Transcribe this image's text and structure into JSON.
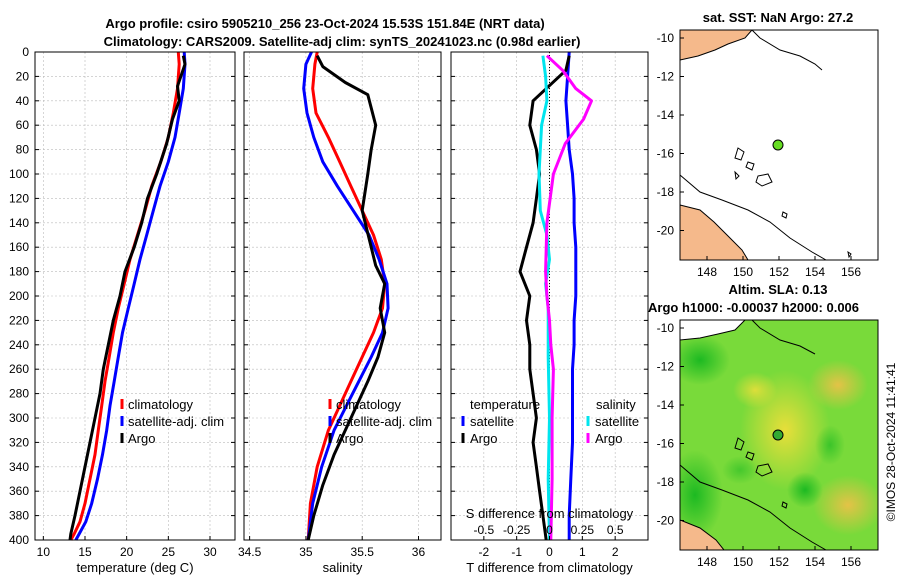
{
  "titles": {
    "line1": "Argo profile: csiro 5905210_256 23-Oct-2024 15.53S 151.84E (NRT data)",
    "line2": "Climatology: CARS2009. Satellite-adj clim: synTS_20241023.nc (0.98d earlier)",
    "map_sst": "sat. SST: NaN Argo: 27.2",
    "map_sla_line1": "Altim. SLA: 0.13",
    "map_sla_line2": "Argo h1000: -0.00037 h2000: 0.006",
    "copyright": "©IMOS 28-Oct-2024 11:41:41"
  },
  "colors": {
    "climatology": "#ff0000",
    "satellite": "#0000ff",
    "argo": "#000000",
    "sal_clim": "#ff00ff",
    "sal_sat": "#00e5ee",
    "land": "#f5b98b",
    "sla_base": "#39d839"
  },
  "chart_data": [
    {
      "type": "line",
      "xlabel": "temperature (deg C)",
      "xlim": [
        9,
        33
      ],
      "xticks": [
        10,
        15,
        20,
        25,
        30
      ],
      "ylim": [
        0,
        400
      ],
      "yticks": [
        0,
        20,
        40,
        60,
        80,
        100,
        120,
        140,
        160,
        180,
        200,
        220,
        240,
        260,
        280,
        300,
        320,
        340,
        360,
        380,
        400
      ],
      "grid": true,
      "legend": {
        "position": "middle-right",
        "entries": [
          "climatology",
          "satellite-adj. clim",
          "Argo"
        ]
      },
      "series": [
        {
          "name": "climatology",
          "color": "#ff0000",
          "x": [
            26.2,
            26.3,
            26.1,
            25.6,
            25.0,
            24.1,
            23.0,
            22.2,
            21.3,
            20.4,
            19.7,
            19.0,
            18.4,
            17.9,
            17.4,
            17.0,
            16.6,
            16.2,
            15.6,
            15.0,
            14.4,
            13.7,
            13.3
          ],
          "y": [
            0,
            10,
            30,
            50,
            70,
            90,
            110,
            130,
            150,
            170,
            190,
            210,
            230,
            250,
            270,
            290,
            310,
            330,
            350,
            370,
            385,
            395,
            400
          ]
        },
        {
          "name": "satellite-adj. clim",
          "color": "#0000ff",
          "x": [
            26.9,
            27.0,
            26.8,
            26.3,
            25.8,
            25.0,
            24.0,
            23.2,
            22.4,
            21.6,
            20.9,
            20.2,
            19.5,
            19.0,
            18.5,
            18.0,
            17.6,
            17.1,
            16.5,
            15.8,
            15.1,
            14.3,
            13.9
          ],
          "y": [
            0,
            10,
            30,
            50,
            70,
            90,
            110,
            130,
            150,
            170,
            190,
            210,
            230,
            250,
            270,
            290,
            310,
            330,
            350,
            370,
            385,
            395,
            400
          ]
        },
        {
          "name": "Argo",
          "color": "#000000",
          "x": [
            26.8,
            27.0,
            26.1,
            26.3,
            25.5,
            24.8,
            23.6,
            22.5,
            21.8,
            20.9,
            19.8,
            19.2,
            18.4,
            17.8,
            17.2,
            16.8,
            16.2,
            15.6,
            15.0,
            14.4,
            13.8,
            13.3,
            13.2
          ],
          "y": [
            3,
            10,
            28,
            40,
            55,
            75,
            100,
            120,
            140,
            160,
            180,
            200,
            220,
            240,
            260,
            280,
            300,
            320,
            340,
            360,
            380,
            395,
            400
          ]
        }
      ]
    },
    {
      "type": "line",
      "xlabel": "salinity",
      "xlim": [
        34.45,
        36.2
      ],
      "xticks": [
        34.5,
        35,
        35.5,
        36
      ],
      "xticklabels": [
        "34.5",
        "35",
        "35.5",
        "36"
      ],
      "ylim": [
        0,
        400
      ],
      "grid": true,
      "legend": {
        "position": "middle-right",
        "entries": [
          "climatology",
          "satellite-adj. clim",
          "Argo"
        ]
      },
      "series": [
        {
          "name": "climatology",
          "color": "#ff0000",
          "x": [
            35.1,
            35.08,
            35.06,
            35.09,
            35.2,
            35.3,
            35.4,
            35.5,
            35.6,
            35.67,
            35.7,
            35.68,
            35.6,
            35.5,
            35.4,
            35.3,
            35.2,
            35.1,
            35.04,
            35.02
          ],
          "y": [
            0,
            10,
            30,
            50,
            70,
            90,
            110,
            130,
            150,
            170,
            190,
            210,
            230,
            250,
            270,
            290,
            310,
            340,
            370,
            400
          ]
        },
        {
          "name": "satellite-adj. clim",
          "color": "#0000ff",
          "x": [
            35.05,
            35.0,
            34.98,
            35.01,
            35.07,
            35.15,
            35.28,
            35.42,
            35.56,
            35.65,
            35.72,
            35.73,
            35.68,
            35.58,
            35.47,
            35.36,
            35.25,
            35.14,
            35.06,
            35.02
          ],
          "y": [
            0,
            10,
            30,
            50,
            70,
            90,
            110,
            130,
            150,
            170,
            190,
            210,
            230,
            250,
            270,
            290,
            310,
            340,
            370,
            400
          ]
        },
        {
          "name": "Argo",
          "color": "#000000",
          "x": [
            35.1,
            35.15,
            35.35,
            35.55,
            35.62,
            35.58,
            35.55,
            35.5,
            35.58,
            35.62,
            35.7,
            35.66,
            35.7,
            35.64,
            35.55,
            35.45,
            35.35,
            35.25,
            35.15,
            35.07,
            35.02
          ],
          "y": [
            3,
            12,
            25,
            35,
            60,
            80,
            100,
            130,
            160,
            175,
            190,
            210,
            230,
            250,
            270,
            290,
            310,
            330,
            355,
            380,
            400
          ]
        }
      ]
    },
    {
      "type": "line",
      "xlabel": "T difference from climatology",
      "xlabel_top": "S difference from climatology",
      "xlim": [
        -3,
        3
      ],
      "xticks": [
        -2,
        -1,
        0,
        1,
        2
      ],
      "xlim_top": [
        -0.75,
        0.75
      ],
      "xticks_top": [
        -0.5,
        -0.25,
        0,
        0.25,
        0.5
      ],
      "xticklabels_top": [
        "-0.5",
        "-0.25",
        "0",
        "0.25",
        "0.5"
      ],
      "ylim": [
        0,
        400
      ],
      "grid": true,
      "legend": {
        "position": "middle",
        "entries": [
          "temperature",
          "satellite",
          "Argo",
          "salinity",
          "satellite",
          "Argo"
        ]
      },
      "series": [
        {
          "name": "temperature satellite",
          "color": "#0000ff",
          "x": [
            0.6,
            0.55,
            0.5,
            0.55,
            0.6,
            0.7,
            0.75,
            0.75,
            0.8,
            0.8,
            0.8,
            0.75,
            0.75,
            0.7,
            0.7,
            0.7,
            0.7,
            0.65,
            0.6,
            0.6
          ],
          "y": [
            0,
            20,
            40,
            60,
            80,
            100,
            120,
            140,
            160,
            180,
            200,
            220,
            240,
            260,
            280,
            300,
            320,
            350,
            380,
            400
          ]
        },
        {
          "name": "temperature Argo",
          "color": "#000000",
          "x": [
            0.6,
            0.5,
            -0.5,
            -0.6,
            -0.4,
            -0.3,
            -0.4,
            -0.5,
            -0.7,
            -0.9,
            -0.6,
            -0.7,
            -0.6,
            -0.6,
            -0.5,
            -0.4,
            -0.5,
            -0.4,
            -0.3,
            -0.2,
            -0.1
          ],
          "y": [
            3,
            15,
            40,
            60,
            80,
            100,
            120,
            140,
            160,
            180,
            200,
            220,
            240,
            260,
            280,
            300,
            320,
            340,
            360,
            380,
            400
          ]
        },
        {
          "name": "salinity satellite",
          "color": "#00e5ee",
          "x": [
            -0.05,
            -0.03,
            -0.02,
            -0.06,
            -0.07,
            -0.08,
            -0.07,
            -0.02,
            0.0,
            -0.03,
            -0.01,
            -0.01,
            -0.01,
            0.0,
            -0.01,
            0.0
          ],
          "y": [
            3,
            20,
            40,
            60,
            80,
            100,
            130,
            150,
            170,
            190,
            210,
            230,
            250,
            300,
            350,
            400
          ]
        },
        {
          "name": "salinity Argo",
          "color": "#ff00ff",
          "x": [
            -0.02,
            0.1,
            0.2,
            0.32,
            0.26,
            0.12,
            0.03,
            -0.02,
            -0.03,
            -0.02,
            0.0,
            0.01,
            0.03,
            0.02,
            0.02,
            0.01
          ],
          "y": [
            3,
            15,
            30,
            40,
            55,
            75,
            100,
            140,
            180,
            200,
            220,
            240,
            260,
            300,
            350,
            400
          ]
        }
      ]
    }
  ],
  "maps": {
    "sst": {
      "xticks": [
        "148",
        "150",
        "152",
        "154",
        "156"
      ],
      "yticks": [
        "-10",
        "-12",
        "-14",
        "-16",
        "-18",
        "-20"
      ],
      "float_lat": -15.53,
      "float_lon": 151.84
    },
    "sla": {
      "xticks": [
        "148",
        "150",
        "152",
        "154",
        "156"
      ],
      "yticks": [
        "-10",
        "-12",
        "-14",
        "-16",
        "-18",
        "-20"
      ],
      "float_lat": -15.53,
      "float_lon": 151.84
    }
  }
}
